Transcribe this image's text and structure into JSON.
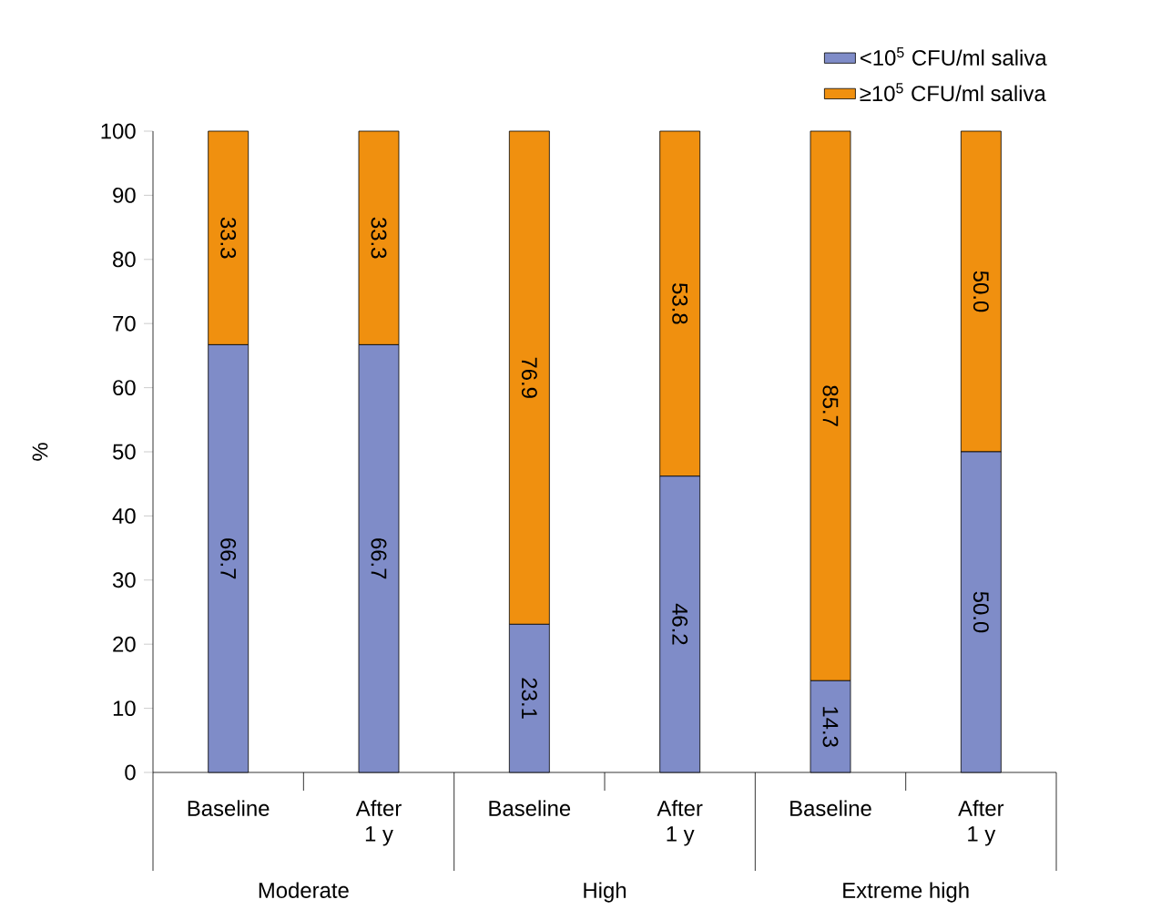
{
  "chart_data": {
    "type": "bar",
    "stacked": true,
    "ylabel": "%",
    "categories": [
      "Baseline",
      "After 1 y",
      "Baseline",
      "After 1 y",
      "Baseline",
      "After 1 y"
    ],
    "annotations": [
      "Moderate",
      "High",
      "Extreme high"
    ],
    "series": [
      {
        "name": "<10$^{5}$ CFU/ml saliva",
        "color": "#7f8cc8",
        "values": [
          66.7,
          66.7,
          23.1,
          46.2,
          14.3,
          50.0
        ],
        "value_labels": [
          "66.7",
          "66.7",
          "23.1",
          "46.2",
          "14.3",
          "50.0"
        ]
      },
      {
        "name": "≥10$^{5}$ CFU/ml saliva",
        "color": "#f0900f",
        "values": [
          33.3,
          33.3,
          76.9,
          53.8,
          85.7,
          50.0
        ],
        "value_labels": [
          "33.3",
          "33.3",
          "76.9",
          "53.8",
          "85.7",
          "50.0"
        ]
      }
    ],
    "ylim": [
      0,
      100
    ],
    "yticks": [
      0,
      10,
      20,
      30,
      40,
      50,
      60,
      70,
      80,
      90,
      100
    ],
    "legend": "top right",
    "grid": false
  }
}
